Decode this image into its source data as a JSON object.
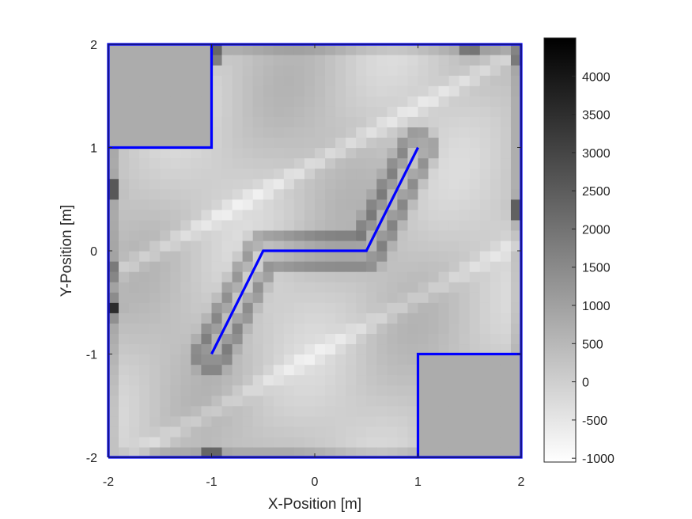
{
  "chart_data": {
    "type": "heatmap",
    "title": "",
    "xlabel": "X-Position [m]",
    "ylabel": "Y-Position [m]",
    "xlim": [
      -2,
      2
    ],
    "ylim": [
      -2,
      2
    ],
    "x_ticks": [
      -2,
      -1,
      0,
      1,
      2
    ],
    "y_ticks": [
      -2,
      -1,
      0,
      1,
      2
    ],
    "x_tick_labels": [
      "-2",
      "-1",
      "0",
      "1",
      "2"
    ],
    "y_tick_labels": [
      "-2",
      "-1",
      "0",
      "1",
      "2"
    ],
    "grid_resolution": 40,
    "colormap": "gray-reversed",
    "colorbar": {
      "range": [
        -1050,
        4500
      ],
      "ticks": [
        -1000,
        -500,
        0,
        500,
        1000,
        1500,
        2000,
        2500,
        3000,
        3500,
        4000
      ],
      "tick_labels": [
        "-1000",
        "-500",
        "0",
        "500",
        "1000",
        "1500",
        "2000",
        "2500",
        "3000",
        "3500",
        "4000"
      ]
    },
    "field": {
      "background": 150,
      "obstacle_interior": 750,
      "light_streak": -600,
      "path_edge": 1400
    },
    "obstacles": [
      {
        "name": "top-left-block",
        "x": [
          -2,
          -1
        ],
        "y": [
          1,
          2
        ]
      },
      {
        "name": "bottom-right-block",
        "x": [
          1,
          2
        ],
        "y": [
          -2,
          -1
        ]
      }
    ],
    "boundary": {
      "color": "#0000ff",
      "points": [
        [
          -2,
          -2
        ],
        [
          2,
          -2
        ],
        [
          2,
          -1
        ],
        [
          1,
          -1
        ],
        [
          1,
          -2
        ],
        [
          2,
          -2
        ],
        [
          2,
          2
        ],
        [
          -2,
          2
        ],
        [
          -2,
          1
        ],
        [
          -1,
          1
        ],
        [
          -1,
          2
        ],
        [
          -2,
          2
        ],
        [
          -2,
          -2
        ]
      ]
    },
    "path": {
      "color": "#0000ff",
      "points": [
        [
          -1,
          -1
        ],
        [
          -0.5,
          0
        ],
        [
          0.5,
          0
        ],
        [
          1,
          1
        ]
      ]
    },
    "hotspots": [
      {
        "x": -2.0,
        "y": 0.6,
        "value": 4300
      },
      {
        "x": -2.0,
        "y": -0.55,
        "value": 4100
      },
      {
        "x": -1.0,
        "y": 1.9,
        "value": 4000
      },
      {
        "x": 2.0,
        "y": 0.4,
        "value": 4300
      },
      {
        "x": 2.0,
        "y": 1.9,
        "value": 3000
      },
      {
        "x": 1.5,
        "y": 2.0,
        "value": 2500
      },
      {
        "x": -1.0,
        "y": -2.0,
        "value": 3500
      },
      {
        "x": -2.0,
        "y": -0.2,
        "value": 2800
      }
    ]
  }
}
